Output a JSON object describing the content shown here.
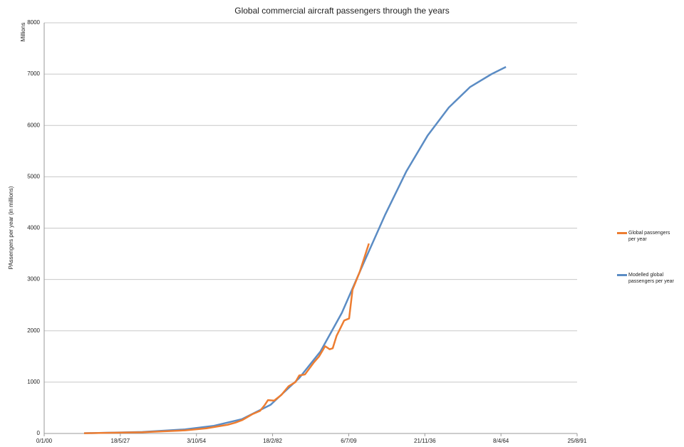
{
  "chart_data": {
    "type": "line",
    "title": "Global commercial aircraft passengers through the years",
    "y_unit_label": "Millions",
    "y_label": "PAssengers per year (in millions)",
    "xlim": [
      0,
      70000
    ],
    "xticks": [
      {
        "value": 0,
        "label": "0/1/00"
      },
      {
        "value": 10000,
        "label": "18/5/27"
      },
      {
        "value": 20000,
        "label": "3/10/54"
      },
      {
        "value": 30000,
        "label": "18/2/82"
      },
      {
        "value": 40000,
        "label": "6/7/09"
      },
      {
        "value": 50000,
        "label": "21/11/36"
      },
      {
        "value": 60000,
        "label": "8/4/64"
      },
      {
        "value": 70000,
        "label": "25/8/91"
      }
    ],
    "ylim": [
      0,
      8000
    ],
    "yticks": [
      0,
      1000,
      2000,
      3000,
      4000,
      5000,
      6000,
      7000,
      8000
    ],
    "grid": true,
    "series": [
      {
        "name": "Global passengers per year",
        "color": "#ed7d31",
        "x": [
          5240,
          12900,
          18500,
          21300,
          24100,
          25100,
          26000,
          27400,
          28350,
          29000,
          29400,
          30200,
          31150,
          32100,
          33000,
          33500,
          34250,
          35400,
          36100,
          36900,
          37500,
          37900,
          38400,
          38900,
          39400,
          40050,
          40500,
          41450,
          42650
        ],
        "values": [
          5,
          25,
          60,
          100,
          170,
          210,
          260,
          380,
          440,
          560,
          650,
          640,
          750,
          920,
          1000,
          1130,
          1150,
          1380,
          1500,
          1700,
          1640,
          1660,
          1900,
          2050,
          2200,
          2240,
          2800,
          3150,
          3700
        ]
      },
      {
        "name": "Modelled global passengers per year",
        "color": "#5b8cc4",
        "x": [
          5240,
          12900,
          18500,
          22300,
          26000,
          29750,
          33500,
          36300,
          39100,
          41900,
          44750,
          47550,
          50350,
          53150,
          55950,
          58750,
          60650
        ],
        "values": [
          5,
          30,
          80,
          150,
          280,
          560,
          1080,
          1600,
          2350,
          3300,
          4250,
          5100,
          5800,
          6350,
          6750,
          7000,
          7140
        ]
      }
    ]
  }
}
